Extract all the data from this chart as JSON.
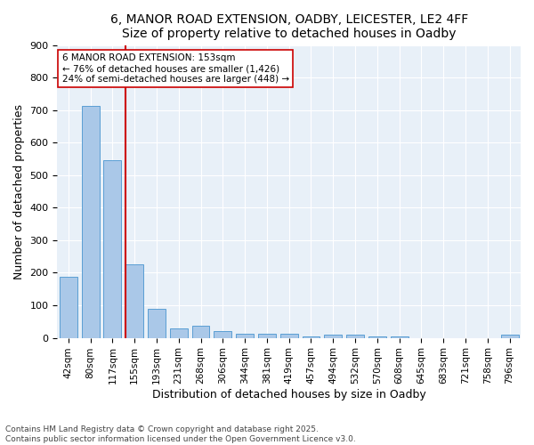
{
  "title1": "6, MANOR ROAD EXTENSION, OADBY, LEICESTER, LE2 4FF",
  "title2": "Size of property relative to detached houses in Oadby",
  "xlabel": "Distribution of detached houses by size in Oadby",
  "ylabel": "Number of detached properties",
  "categories": [
    "42sqm",
    "80sqm",
    "117sqm",
    "155sqm",
    "193sqm",
    "231sqm",
    "268sqm",
    "306sqm",
    "344sqm",
    "381sqm",
    "419sqm",
    "457sqm",
    "494sqm",
    "532sqm",
    "570sqm",
    "608sqm",
    "645sqm",
    "683sqm",
    "721sqm",
    "758sqm",
    "796sqm"
  ],
  "values": [
    188,
    713,
    545,
    225,
    88,
    28,
    38,
    22,
    13,
    12,
    12,
    4,
    10,
    9,
    4,
    4,
    0,
    0,
    0,
    0,
    10
  ],
  "bar_color": "#aac8e8",
  "bar_edge_color": "#5a9fd4",
  "red_line_index": 3,
  "red_line_color": "#cc0000",
  "annotation_text": "6 MANOR ROAD EXTENSION: 153sqm\n← 76% of detached houses are smaller (1,426)\n24% of semi-detached houses are larger (448) →",
  "annotation_box_color": "#ffffff",
  "annotation_box_edge": "#cc0000",
  "ylim": [
    0,
    900
  ],
  "yticks": [
    0,
    100,
    200,
    300,
    400,
    500,
    600,
    700,
    800,
    900
  ],
  "bg_color": "#e8f0f8",
  "footer": "Contains HM Land Registry data © Crown copyright and database right 2025.\nContains public sector information licensed under the Open Government Licence v3.0.",
  "title_fontsize": 10,
  "bar_width": 0.8
}
